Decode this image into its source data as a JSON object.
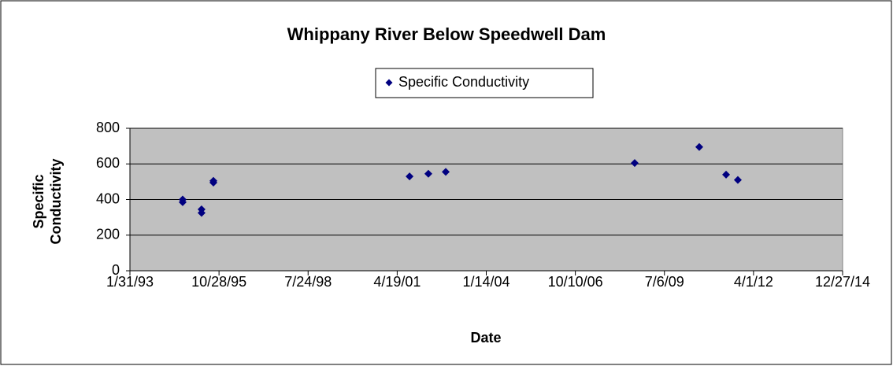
{
  "chart_data": {
    "type": "scatter",
    "title": "Whippany River Below Speedwell Dam",
    "x_label": "Date",
    "y_label": "Specific Conductivity",
    "series": [
      {
        "name": "Specific Conductivity",
        "color": "#000080",
        "x": [
          "1994-09-15",
          "1994-09-15",
          "1995-04-15",
          "1995-04-15",
          "1995-08-26",
          "1995-08-26",
          "2001-09-05",
          "2002-04-04",
          "2002-10-16",
          "2008-08-06",
          "2010-08-01",
          "2011-05-29",
          "2011-10-08"
        ],
        "values": [
          400,
          385,
          345,
          325,
          505,
          495,
          530,
          545,
          555,
          605,
          695,
          540,
          510
        ]
      }
    ],
    "xlim": [
      "1993-01-31",
      "2014-12-27"
    ],
    "xticks": [
      {
        "value": "1993-01-31",
        "label": "1/31/93"
      },
      {
        "value": "1995-10-28",
        "label": "10/28/95"
      },
      {
        "value": "1998-07-24",
        "label": "7/24/98"
      },
      {
        "value": "2001-04-19",
        "label": "4/19/01"
      },
      {
        "value": "2004-01-14",
        "label": "1/14/04"
      },
      {
        "value": "2006-10-10",
        "label": "10/10/06"
      },
      {
        "value": "2009-07-06",
        "label": "7/6/09"
      },
      {
        "value": "2012-04-01",
        "label": "4/1/12"
      },
      {
        "value": "2014-12-27",
        "label": "12/27/14"
      }
    ],
    "ylim": [
      0,
      800
    ],
    "yticks": [
      0,
      200,
      400,
      600,
      800
    ],
    "grid": true,
    "legend": "top"
  }
}
